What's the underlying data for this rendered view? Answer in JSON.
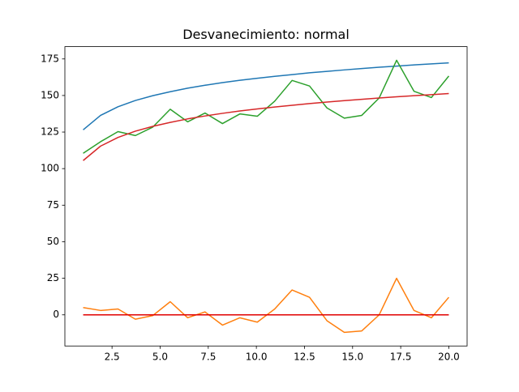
{
  "chart_data": {
    "type": "line",
    "title": "Desvanecimiento: normal",
    "x": [
      1,
      1.905,
      2.81,
      3.714,
      4.619,
      5.524,
      6.429,
      7.333,
      8.238,
      9.143,
      10.048,
      10.952,
      11.857,
      12.762,
      13.667,
      14.571,
      15.476,
      16.381,
      17.286,
      18.19,
      19.095,
      20
    ],
    "series": [
      {
        "color": "#1f77b4",
        "values": [
          126.5,
          136.4,
          142.3,
          146.6,
          149.9,
          152.6,
          155,
          157,
          158.8,
          160.4,
          161.8,
          163.1,
          164.3,
          165.5,
          166.5,
          167.5,
          168.4,
          169.3,
          170.1,
          170.9,
          171.6,
          172.3
        ]
      },
      {
        "color": "#ff7f0e",
        "values": [
          5,
          3,
          4,
          -3,
          -0.5,
          9,
          -2,
          2,
          -7,
          -2,
          -5,
          4,
          17,
          12,
          -4,
          -12,
          -11,
          0,
          25,
          3,
          -2,
          12
        ]
      },
      {
        "color": "#2ca02c",
        "values": [
          110.5,
          118.4,
          125.3,
          122.6,
          128.4,
          140.6,
          132,
          138,
          130.8,
          137.4,
          135.8,
          146.1,
          160.3,
          156.5,
          141.5,
          134.5,
          136.4,
          148.3,
          174.1,
          152.9,
          148.6,
          163.3
        ]
      },
      {
        "color": "#d62728",
        "values": [
          105.5,
          115.4,
          121.3,
          125.6,
          128.9,
          131.6,
          134,
          136,
          137.8,
          139.4,
          140.8,
          142.1,
          143.3,
          144.5,
          145.5,
          146.5,
          147.4,
          148.3,
          149.1,
          149.9,
          150.6,
          151.3
        ]
      },
      {
        "color": "#e00000",
        "values": [
          0,
          0,
          0,
          0,
          0,
          0,
          0,
          0,
          0,
          0,
          0,
          0,
          0,
          0,
          0,
          0,
          0,
          0,
          0,
          0,
          0,
          0
        ]
      }
    ],
    "xlim": [
      0.05,
      20.95
    ],
    "ylim": [
      -21.3,
      183.4
    ],
    "xticks": [
      2.5,
      {
        "value": 5,
        "label": "5.0"
      },
      7.5,
      {
        "value": 10,
        "label": "10.0"
      },
      12.5,
      {
        "value": 15,
        "label": "15.0"
      },
      17.5,
      {
        "value": 20,
        "label": "20.0"
      }
    ],
    "yticks": [
      0,
      25,
      50,
      75,
      100,
      125,
      150,
      175
    ],
    "grid": false
  }
}
